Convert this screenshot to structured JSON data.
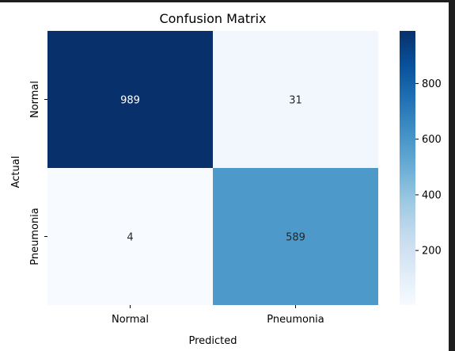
{
  "chart_data": {
    "type": "heatmap",
    "title": "Confusion Matrix",
    "xlabel": "Predicted",
    "ylabel": "Actual",
    "x_categories": [
      "Normal",
      "Pneumonia"
    ],
    "y_categories": [
      "Normal",
      "Pneumonia"
    ],
    "values": [
      [
        989,
        31
      ],
      [
        4,
        589
      ]
    ],
    "colormap": "Blues",
    "color_range": [
      4,
      989
    ],
    "colorbar_ticks": [
      200,
      400,
      600,
      800
    ],
    "colors": {
      "low": "#f7fbff",
      "high": "#08306b"
    }
  }
}
